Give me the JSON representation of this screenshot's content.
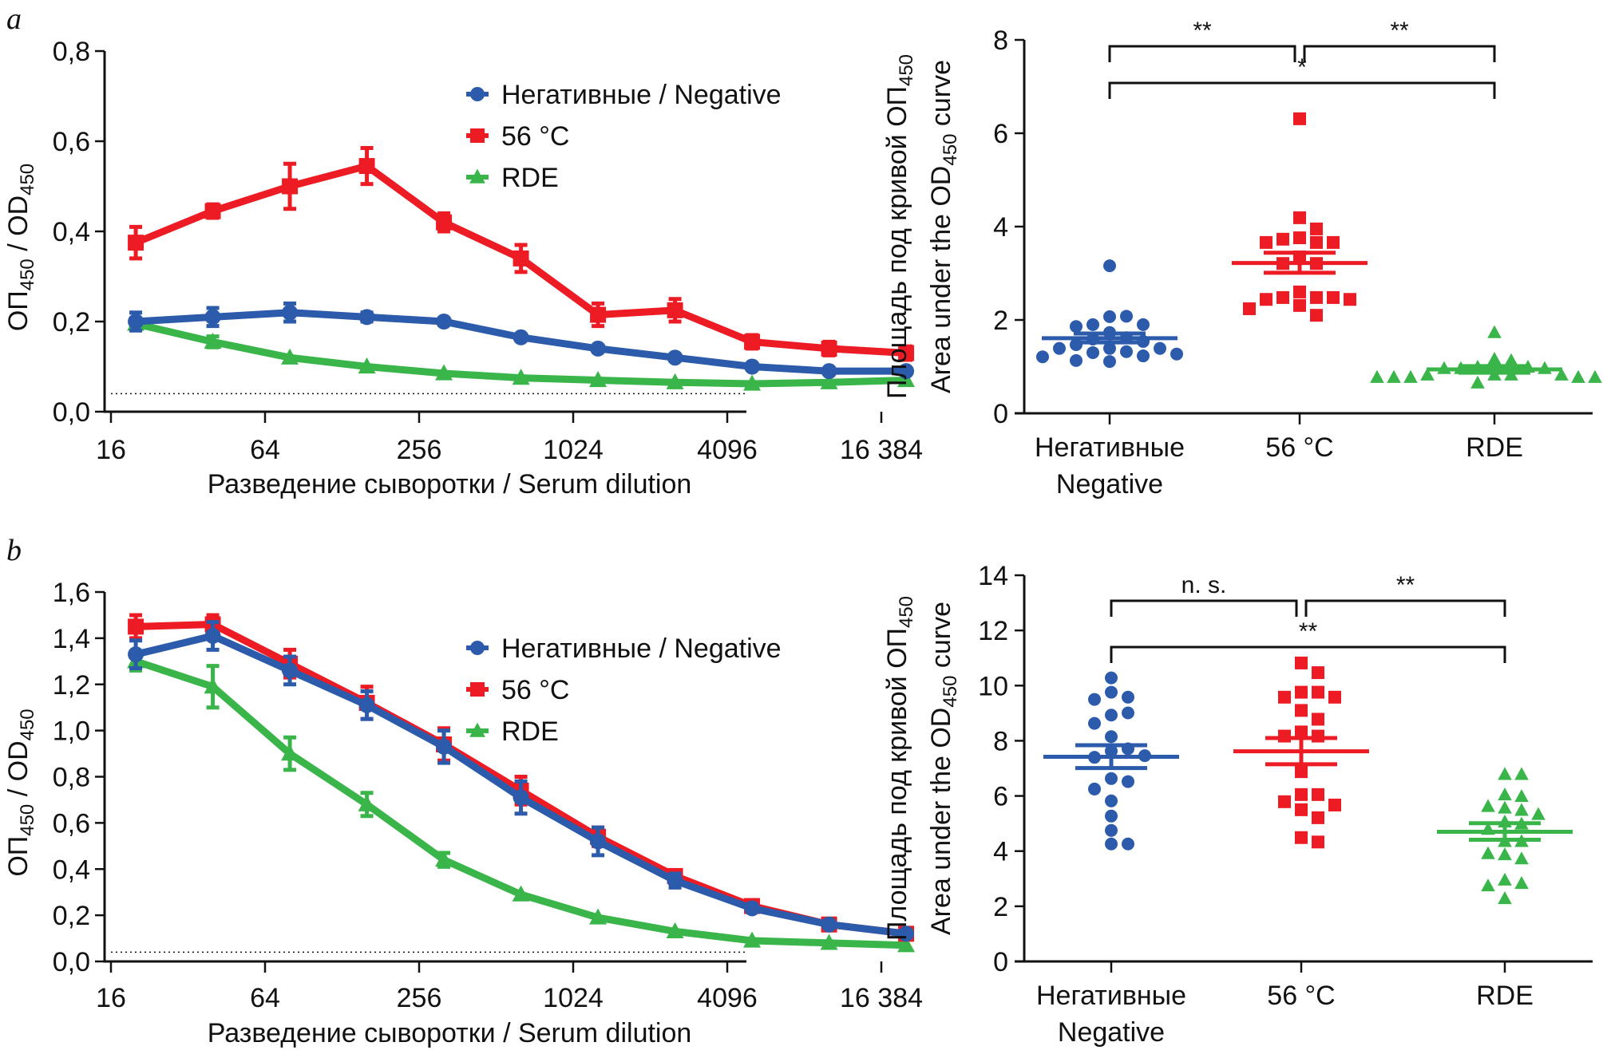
{
  "colors": {
    "negative": "#2B5BAA",
    "heat56": "#ED1C24",
    "rde": "#3AB54A",
    "axis": "#111111"
  },
  "chart_data": [
    {
      "id": "a-left",
      "panel": "a",
      "type": "line",
      "title": "",
      "xlabel": "Разведение сыворотки / Serum dilution",
      "ylabel": "ОП450 / OD450",
      "xscale": "log2",
      "xlim": [
        16,
        24000
      ],
      "ylim": [
        0,
        0.8
      ],
      "xticks": [
        16,
        64,
        256,
        1024,
        4096,
        16384
      ],
      "xtick_labels": [
        "16",
        "64",
        "256",
        "1024",
        "4096",
        "16 384"
      ],
      "yticks": [
        0,
        0.2,
        0.4,
        0.6,
        0.8
      ],
      "ytick_labels": [
        "0,0",
        "0,2",
        "0,4",
        "0,6",
        "0,8"
      ],
      "cutoff": 0.04,
      "legend_position": "top-right",
      "x": [
        20,
        40,
        80,
        160,
        320,
        640,
        1280,
        2560,
        5120,
        10240,
        20480
      ],
      "series": [
        {
          "name": "Негативные / Negative",
          "color_key": "negative",
          "marker": "circle",
          "values": [
            0.2,
            0.21,
            0.22,
            0.21,
            0.2,
            0.165,
            0.14,
            0.12,
            0.1,
            0.09,
            0.09
          ],
          "errors": [
            0.02,
            0.02,
            0.02,
            0.01,
            0.005,
            0.005,
            0.005,
            0.005,
            0.005,
            0.005,
            0.005
          ]
        },
        {
          "name": "56 °C",
          "color_key": "heat56",
          "marker": "square",
          "values": [
            0.375,
            0.445,
            0.5,
            0.545,
            0.42,
            0.34,
            0.215,
            0.225,
            0.155,
            0.14,
            0.13
          ],
          "errors": [
            0.035,
            0.015,
            0.05,
            0.04,
            0.02,
            0.03,
            0.025,
            0.025,
            0.015,
            0.015,
            0.015
          ]
        },
        {
          "name": "RDE",
          "color_key": "rde",
          "marker": "triangle",
          "values": [
            0.195,
            0.155,
            0.12,
            0.1,
            0.085,
            0.075,
            0.07,
            0.065,
            0.062,
            0.065,
            0.07
          ],
          "errors": [
            0.01,
            0.012,
            0.004,
            0.003,
            0.003,
            0.003,
            0.003,
            0.003,
            0.003,
            0.003,
            0.003
          ]
        }
      ]
    },
    {
      "id": "a-right",
      "panel": "a",
      "type": "scatter",
      "title": "",
      "xlabel": "",
      "ylabel": "Площадь под кривой ОП450 / Area under the OD450 curve",
      "ylabel_line1": "Площадь под кривой ОП",
      "ylabel_line2_a": "Area under the OD",
      "ylabel_line2_b": " curve",
      "ylabel_sub": "450",
      "ylim": [
        0,
        8
      ],
      "yticks": [
        0,
        2,
        4,
        6,
        8
      ],
      "ytick_labels": [
        "0",
        "2",
        "4",
        "6",
        "8"
      ],
      "categories": [
        "Негативные\nNegative",
        "56 °C",
        "RDE"
      ],
      "category_lines": [
        [
          "Негативные",
          "Negative"
        ],
        [
          "56 °C"
        ],
        [
          "RDE"
        ]
      ],
      "groups": [
        {
          "name": "Негативные / Negative",
          "color_key": "negative",
          "marker": "circle",
          "mean": 1.61,
          "sem": [
            1.52,
            1.71
          ],
          "points": [
            3.16,
            2.07,
            2.08,
            1.9,
            1.9,
            1.86,
            1.73,
            1.62,
            1.59,
            1.54,
            1.47,
            1.39,
            1.39,
            1.39,
            1.32,
            1.3,
            1.27,
            1.23,
            1.21,
            1.13,
            1.11
          ]
        },
        {
          "name": "56 °C",
          "color_key": "heat56",
          "marker": "square",
          "mean": 3.22,
          "sem": [
            3.01,
            3.44
          ],
          "points": [
            6.31,
            4.19,
            3.95,
            3.76,
            3.73,
            3.66,
            3.66,
            3.66,
            3.35,
            3.21,
            3.21,
            2.6,
            2.48,
            2.48,
            2.48,
            2.44,
            2.44,
            2.31,
            2.24,
            2.1
          ]
        },
        {
          "name": "RDE",
          "color_key": "rde",
          "marker": "triangle",
          "mean": 0.94,
          "sem": [
            0.87,
            1.01
          ],
          "points": [
            1.73,
            1.16,
            1.13,
            0.99,
            0.99,
            0.96,
            0.96,
            0.96,
            0.82,
            0.82,
            0.82,
            0.82,
            0.77,
            0.77,
            0.77,
            0.77,
            0.77,
            0.77,
            0.65
          ]
        }
      ],
      "significance": [
        {
          "from": 0,
          "to": 1,
          "label": "**",
          "level": 1
        },
        {
          "from": 1,
          "to": 2,
          "label": "**",
          "level": 1
        },
        {
          "from": 0,
          "to": 2,
          "label": "*",
          "level": 2
        }
      ]
    },
    {
      "id": "b-left",
      "panel": "b",
      "type": "line",
      "title": "",
      "xlabel": "Разведение сыворотки / Serum dilution",
      "ylabel": "ОП450 / OD450",
      "xscale": "log2",
      "xlim": [
        16,
        24000
      ],
      "ylim": [
        0,
        1.6
      ],
      "xticks": [
        16,
        64,
        256,
        1024,
        4096,
        16384
      ],
      "xtick_labels": [
        "16",
        "64",
        "256",
        "1024",
        "4096",
        "16 384"
      ],
      "yticks": [
        0,
        0.2,
        0.4,
        0.6,
        0.8,
        1.0,
        1.2,
        1.4,
        1.6
      ],
      "ytick_labels": [
        "0,0",
        "0,2",
        "0,4",
        "0,6",
        "0,8",
        "1,0",
        "1,2",
        "1,4",
        "1,6"
      ],
      "cutoff": 0.04,
      "legend_position": "top-right",
      "x": [
        20,
        40,
        80,
        160,
        320,
        640,
        1280,
        2560,
        5120,
        10240,
        20480
      ],
      "series": [
        {
          "name": "Негативные / Negative",
          "color_key": "negative",
          "marker": "circle",
          "values": [
            1.33,
            1.41,
            1.26,
            1.11,
            0.93,
            0.71,
            0.52,
            0.35,
            0.23,
            0.16,
            0.12
          ],
          "errors": [
            0.06,
            0.06,
            0.06,
            0.06,
            0.07,
            0.07,
            0.06,
            0.03,
            0.01,
            0.01,
            0.01
          ]
        },
        {
          "name": "56 °C",
          "color_key": "heat56",
          "marker": "square",
          "values": [
            1.45,
            1.46,
            1.29,
            1.12,
            0.94,
            0.74,
            0.54,
            0.37,
            0.24,
            0.16,
            0.12
          ],
          "errors": [
            0.05,
            0.04,
            0.06,
            0.07,
            0.07,
            0.06,
            0.04,
            0.02,
            0.01,
            0.01,
            0.01
          ]
        },
        {
          "name": "RDE",
          "color_key": "rde",
          "marker": "triangle",
          "values": [
            1.3,
            1.19,
            0.9,
            0.68,
            0.44,
            0.29,
            0.19,
            0.13,
            0.09,
            0.08,
            0.07
          ],
          "errors": [
            0.04,
            0.09,
            0.07,
            0.05,
            0.03,
            0.005,
            0.005,
            0.005,
            0.005,
            0.005,
            0.005
          ]
        }
      ]
    },
    {
      "id": "b-right",
      "panel": "b",
      "type": "scatter",
      "title": "",
      "xlabel": "",
      "ylabel": "Площадь под кривой ОП450 / Area under the OD450 curve",
      "ylabel_line1": "Площадь под кривой ОП",
      "ylabel_line2_a": "Area under the OD",
      "ylabel_line2_b": " curve",
      "ylabel_sub": "450",
      "ylim": [
        0,
        14
      ],
      "yticks": [
        0,
        2,
        4,
        6,
        8,
        10,
        12,
        14
      ],
      "ytick_labels": [
        "0",
        "2",
        "4",
        "6",
        "8",
        "10",
        "12",
        "14"
      ],
      "categories": [
        "Негативные\nNegative",
        "56 °C",
        "RDE"
      ],
      "category_lines": [
        [
          "Негативные",
          "Negative"
        ],
        [
          "56 °C"
        ],
        [
          "RDE"
        ]
      ],
      "groups": [
        {
          "name": "Негативные / Negative",
          "color_key": "negative",
          "marker": "circle",
          "mean": 7.42,
          "sem": [
            7.01,
            7.84
          ],
          "points": [
            10.28,
            9.76,
            9.58,
            9.5,
            8.93,
            9.01,
            8.63,
            8.15,
            7.71,
            7.63,
            7.4,
            7.46,
            6.63,
            6.52,
            6.25,
            5.82,
            5.27,
            4.75,
            4.26,
            4.26
          ]
        },
        {
          "name": "56 °C",
          "color_key": "heat56",
          "marker": "square",
          "mean": 7.62,
          "sem": [
            7.15,
            8.1
          ],
          "points": [
            10.82,
            10.47,
            9.76,
            9.76,
            9.58,
            9.58,
            9.1,
            8.78,
            8.32,
            8.17,
            8.17,
            6.88,
            6.05,
            6.05,
            5.79,
            5.67,
            5.5,
            5.21,
            4.49,
            4.33
          ]
        },
        {
          "name": "RDE",
          "color_key": "rde",
          "marker": "triangle",
          "mean": 4.7,
          "sem": [
            4.41,
            5.01
          ],
          "points": [
            6.78,
            6.78,
            6.04,
            5.98,
            5.62,
            5.56,
            5.48,
            5.33,
            5.06,
            4.98,
            4.79,
            4.35,
            4.35,
            3.91,
            3.87,
            3.72,
            2.95,
            2.83,
            2.74,
            2.28
          ]
        }
      ],
      "significance": [
        {
          "from": 0,
          "to": 1,
          "label": "n. s.",
          "level": 1
        },
        {
          "from": 1,
          "to": 2,
          "label": "**",
          "level": 1
        },
        {
          "from": 0,
          "to": 2,
          "label": "**",
          "level": 2
        }
      ]
    }
  ],
  "panels": {
    "a": "a",
    "b": "b"
  }
}
